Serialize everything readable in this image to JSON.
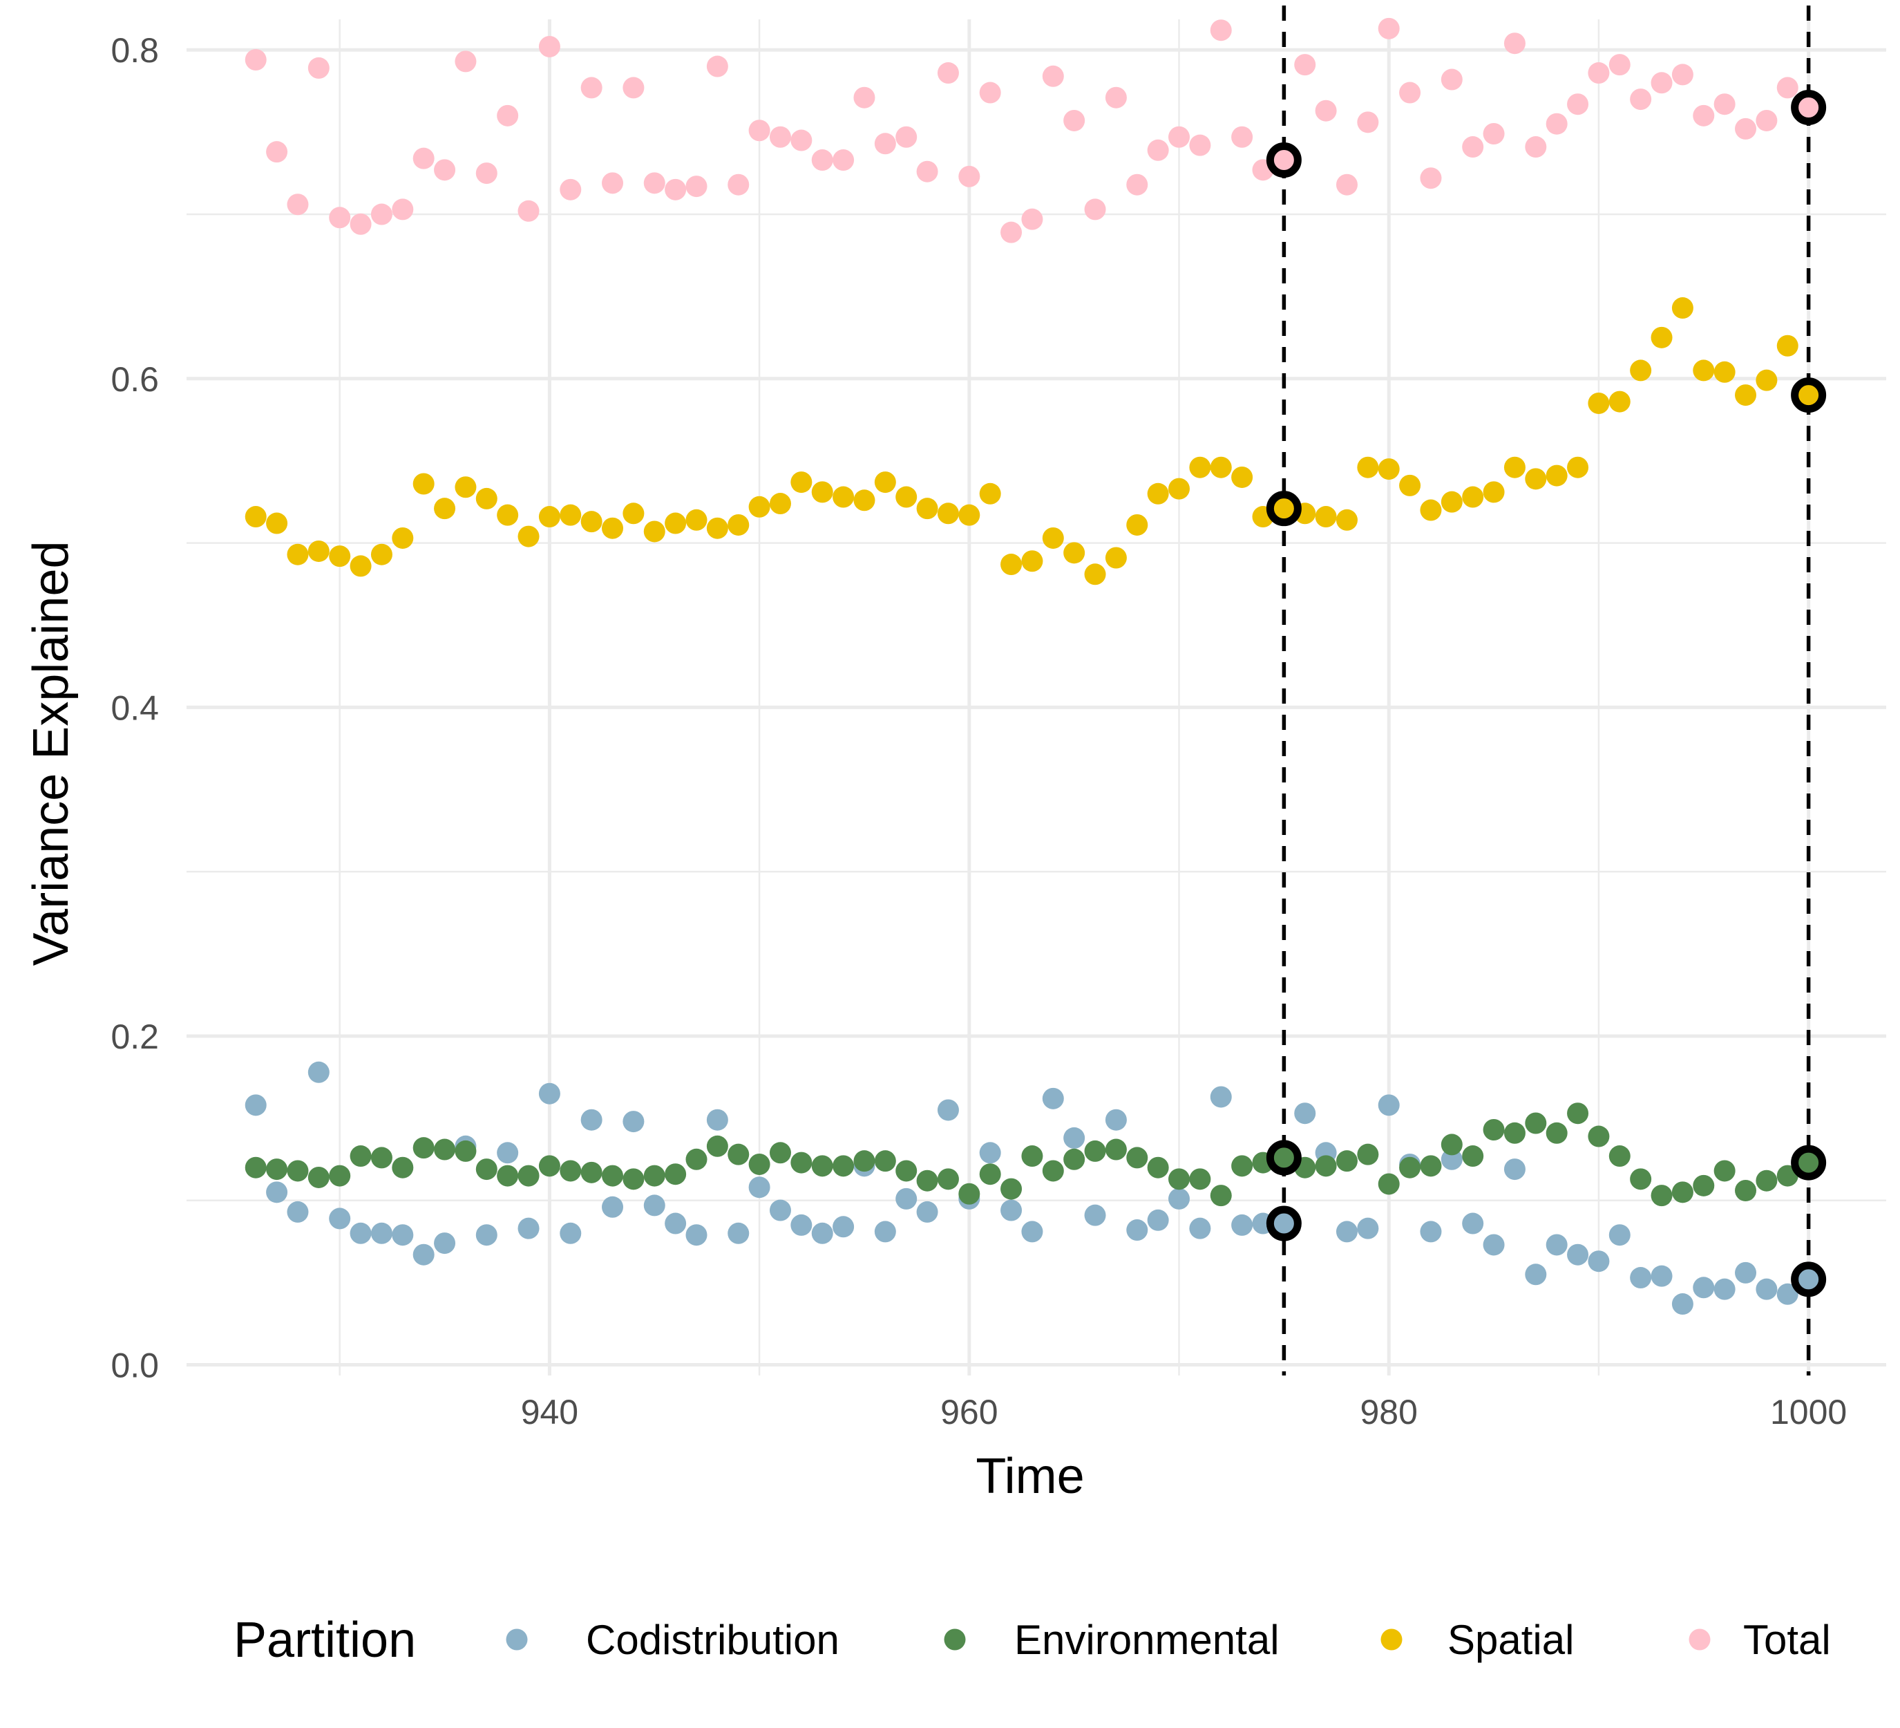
{
  "chart_data": {
    "type": "scatter",
    "title": "",
    "xlabel": "Time",
    "ylabel": "Variance Explained",
    "xlim": [
      922.7,
      1003.7
    ],
    "ylim": [
      -0.0065,
      0.8186
    ],
    "x_ticks": [
      940,
      960,
      980,
      1000
    ],
    "x_tick_labels": [
      "940",
      "960",
      "980",
      "1000"
    ],
    "y_ticks": [
      0.0,
      0.2,
      0.4,
      0.6,
      0.8
    ],
    "y_tick_labels": [
      "0.0",
      "0.2",
      "0.4",
      "0.6",
      "0.8"
    ],
    "grid": true,
    "legend": {
      "title": "Partition",
      "placement": "bottom"
    },
    "vlines": [
      975,
      1000
    ],
    "x": [
      926,
      927,
      928,
      929,
      930,
      931,
      932,
      933,
      934,
      935,
      936,
      937,
      938,
      939,
      940,
      941,
      942,
      943,
      944,
      945,
      946,
      947,
      948,
      949,
      950,
      951,
      952,
      953,
      954,
      955,
      956,
      957,
      958,
      959,
      960,
      961,
      962,
      963,
      964,
      965,
      966,
      967,
      968,
      969,
      970,
      971,
      972,
      973,
      974,
      975,
      976,
      977,
      978,
      979,
      980,
      981,
      982,
      983,
      984,
      985,
      986,
      987,
      988,
      989,
      990,
      991,
      992,
      993,
      994,
      995,
      996,
      997,
      998,
      999,
      1000
    ],
    "series": [
      {
        "name": "Codistribution",
        "color": "#8BB1C8",
        "values": [
          0.158,
          0.105,
          0.093,
          0.178,
          0.089,
          0.08,
          0.08,
          0.079,
          0.067,
          0.074,
          0.133,
          0.079,
          0.129,
          0.083,
          0.165,
          0.08,
          0.149,
          0.096,
          0.148,
          0.097,
          0.086,
          0.079,
          0.149,
          0.08,
          0.108,
          0.094,
          0.085,
          0.08,
          0.084,
          0.121,
          0.081,
          0.101,
          0.093,
          0.155,
          0.101,
          0.129,
          0.094,
          0.081,
          0.162,
          0.138,
          0.091,
          0.149,
          0.082,
          0.088,
          0.101,
          0.083,
          0.163,
          0.085,
          0.086,
          0.086,
          0.153,
          0.129,
          0.081,
          0.083,
          0.158,
          0.122,
          0.081,
          0.125,
          0.086,
          0.073,
          0.119,
          0.055,
          0.073,
          0.067,
          0.063,
          0.079,
          0.053,
          0.054,
          0.037,
          0.047,
          0.046,
          0.056,
          0.046,
          0.043,
          0.052
        ]
      },
      {
        "name": "Environmental",
        "color": "#518A4D",
        "values": [
          0.12,
          0.119,
          0.118,
          0.114,
          0.115,
          0.127,
          0.126,
          0.12,
          0.132,
          0.131,
          0.13,
          0.119,
          0.115,
          0.115,
          0.121,
          0.118,
          0.117,
          0.115,
          0.113,
          0.115,
          0.116,
          0.125,
          0.133,
          0.128,
          0.122,
          0.129,
          0.123,
          0.121,
          0.121,
          0.124,
          0.124,
          0.118,
          0.112,
          0.113,
          0.104,
          0.116,
          0.107,
          0.127,
          0.118,
          0.125,
          0.13,
          0.131,
          0.126,
          0.12,
          0.113,
          0.113,
          0.103,
          0.121,
          0.123,
          0.126,
          0.12,
          0.121,
          0.124,
          0.128,
          0.11,
          0.12,
          0.121,
          0.134,
          0.127,
          0.143,
          0.141,
          0.147,
          0.141,
          0.153,
          0.139,
          0.127,
          0.113,
          0.103,
          0.105,
          0.109,
          0.118,
          0.106,
          0.112,
          0.115,
          0.123
        ]
      },
      {
        "name": "Spatial",
        "color": "#EEC000",
        "values": [
          0.516,
          0.512,
          0.493,
          0.495,
          0.492,
          0.486,
          0.493,
          0.503,
          0.536,
          0.521,
          0.534,
          0.527,
          0.517,
          0.504,
          0.516,
          0.517,
          0.513,
          0.509,
          0.518,
          0.507,
          0.512,
          0.514,
          0.509,
          0.511,
          0.522,
          0.524,
          0.537,
          0.531,
          0.528,
          0.526,
          0.537,
          0.528,
          0.521,
          0.518,
          0.517,
          0.53,
          0.487,
          0.489,
          0.503,
          0.494,
          0.481,
          0.491,
          0.511,
          0.53,
          0.533,
          0.546,
          0.546,
          0.54,
          0.516,
          0.521,
          0.518,
          0.516,
          0.514,
          0.546,
          0.545,
          0.535,
          0.52,
          0.525,
          0.528,
          0.531,
          0.546,
          0.539,
          0.541,
          0.546,
          0.585,
          0.586,
          0.605,
          0.625,
          0.643,
          0.605,
          0.604,
          0.59,
          0.599,
          0.62,
          0.59
        ]
      },
      {
        "name": "Total",
        "color": "#FFC0CB",
        "values": [
          0.794,
          0.738,
          0.706,
          0.789,
          0.698,
          0.694,
          0.7,
          0.703,
          0.734,
          0.727,
          0.793,
          0.725,
          0.76,
          0.702,
          0.802,
          0.715,
          0.777,
          0.719,
          0.777,
          0.719,
          0.715,
          0.717,
          0.79,
          0.718,
          0.751,
          0.747,
          0.745,
          0.733,
          0.733,
          0.771,
          0.743,
          0.747,
          0.726,
          0.786,
          0.723,
          0.774,
          0.689,
          0.697,
          0.784,
          0.757,
          0.703,
          0.771,
          0.718,
          0.739,
          0.747,
          0.742,
          0.812,
          0.747,
          0.727,
          0.733,
          0.791,
          0.763,
          0.718,
          0.756,
          0.813,
          0.774,
          0.722,
          0.782,
          0.741,
          0.749,
          0.804,
          0.741,
          0.755,
          0.767,
          0.786,
          0.791,
          0.77,
          0.78,
          0.785,
          0.76,
          0.767,
          0.752,
          0.757,
          0.777,
          0.765
        ]
      }
    ],
    "highlighted_points": [
      {
        "x": 975,
        "y": 0.733
      },
      {
        "x": 975,
        "y": 0.521
      },
      {
        "x": 975,
        "y": 0.126
      },
      {
        "x": 975,
        "y": 0.086
      },
      {
        "x": 1000,
        "y": 0.765
      },
      {
        "x": 1000,
        "y": 0.59
      },
      {
        "x": 1000,
        "y": 0.123
      },
      {
        "x": 1000,
        "y": 0.052
      }
    ]
  }
}
